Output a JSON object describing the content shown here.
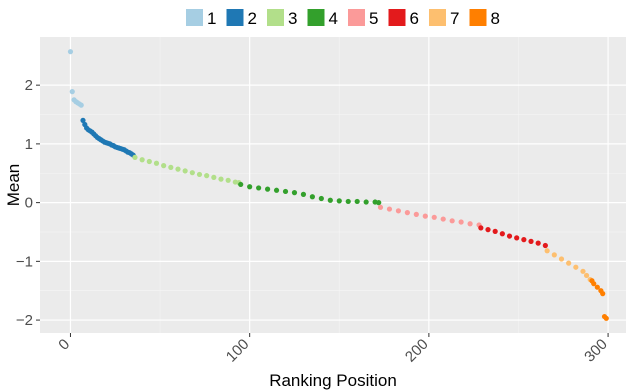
{
  "chart_data": {
    "type": "scatter",
    "xlabel": "Ranking Position",
    "ylabel": "Mean",
    "xlim": [
      -17,
      310
    ],
    "ylim": [
      -2.22,
      2.82
    ],
    "x_ticks": [
      0,
      100,
      200,
      300
    ],
    "x_tick_labels": [
      "0",
      "100",
      "200",
      "300"
    ],
    "y_ticks": [
      2,
      1,
      0,
      -1,
      -2
    ],
    "y_tick_labels": [
      "2",
      "1",
      "0",
      "−1",
      "−2"
    ],
    "grid": true,
    "legend_position": "top",
    "legend": [
      "1",
      "2",
      "3",
      "4",
      "5",
      "6",
      "7",
      "8"
    ],
    "series": [
      {
        "name": "1",
        "color": "#a6cee3",
        "x": [
          0,
          1,
          2,
          3,
          4,
          5,
          6
        ],
        "y": [
          2.57,
          1.89,
          1.75,
          1.72,
          1.7,
          1.68,
          1.66
        ]
      },
      {
        "name": "2",
        "color": "#1f78b4",
        "x": [
          7,
          8,
          9,
          10,
          11,
          12,
          13,
          14,
          15,
          16,
          17,
          18,
          19,
          20,
          21,
          22,
          23,
          24,
          25,
          26,
          27,
          28,
          29,
          30,
          31,
          32,
          33,
          34,
          35
        ],
        "y": [
          1.4,
          1.33,
          1.27,
          1.24,
          1.22,
          1.2,
          1.17,
          1.14,
          1.11,
          1.09,
          1.07,
          1.05,
          1.03,
          1.02,
          1.01,
          1.0,
          0.98,
          0.97,
          0.95,
          0.94,
          0.93,
          0.92,
          0.91,
          0.9,
          0.88,
          0.86,
          0.85,
          0.83,
          0.81
        ]
      },
      {
        "name": "3",
        "color": "#b2df8a",
        "x": [
          36,
          40,
          44,
          48,
          52,
          56,
          60,
          64,
          68,
          72,
          76,
          80,
          84,
          88,
          92,
          94
        ],
        "y": [
          0.77,
          0.73,
          0.7,
          0.67,
          0.63,
          0.6,
          0.57,
          0.54,
          0.51,
          0.48,
          0.46,
          0.43,
          0.4,
          0.38,
          0.35,
          0.34
        ]
      },
      {
        "name": "4",
        "color": "#33a02c",
        "x": [
          95,
          100,
          105,
          110,
          115,
          120,
          125,
          130,
          135,
          140,
          145,
          150,
          155,
          160,
          165,
          170,
          172
        ],
        "y": [
          0.31,
          0.27,
          0.25,
          0.23,
          0.21,
          0.19,
          0.17,
          0.14,
          0.1,
          0.07,
          0.04,
          0.03,
          0.02,
          0.02,
          0.01,
          0.01,
          0.0
        ]
      },
      {
        "name": "5",
        "color": "#fb9a99",
        "x": [
          173,
          178,
          183,
          188,
          193,
          198,
          203,
          208,
          213,
          218,
          223,
          228
        ],
        "y": [
          -0.08,
          -0.11,
          -0.14,
          -0.17,
          -0.2,
          -0.23,
          -0.25,
          -0.28,
          -0.31,
          -0.33,
          -0.36,
          -0.38
        ]
      },
      {
        "name": "6",
        "color": "#e31a1c",
        "x": [
          229,
          233,
          237,
          241,
          245,
          249,
          253,
          257,
          261,
          265
        ],
        "y": [
          -0.43,
          -0.46,
          -0.49,
          -0.53,
          -0.57,
          -0.6,
          -0.63,
          -0.66,
          -0.69,
          -0.73
        ]
      },
      {
        "name": "7",
        "color": "#fdbf6f",
        "x": [
          266,
          270,
          274,
          278,
          282,
          286,
          288,
          290
        ],
        "y": [
          -0.82,
          -0.89,
          -0.96,
          -1.03,
          -1.1,
          -1.17,
          -1.24,
          -1.31
        ]
      },
      {
        "name": "8",
        "color": "#ff7f00",
        "x": [
          291,
          292,
          294,
          296,
          297,
          298,
          299
        ],
        "y": [
          -1.33,
          -1.38,
          -1.44,
          -1.5,
          -1.55,
          -1.94,
          -1.97
        ]
      }
    ]
  }
}
